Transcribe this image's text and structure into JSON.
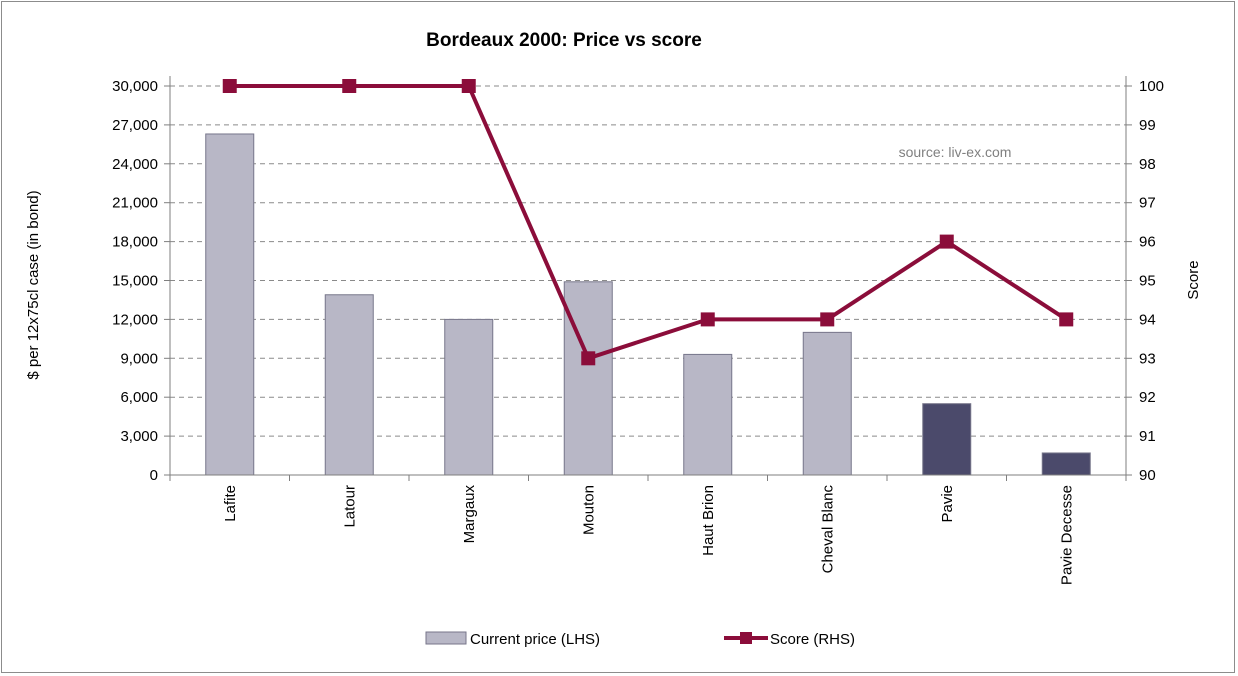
{
  "chart_data": {
    "type": "bar",
    "title": "Bordeaux 2000: Price vs score",
    "source_note": "source: liv-ex.com",
    "categories": [
      "Lafite",
      "Latour",
      "Margaux",
      "Mouton",
      "Haut Brion",
      "Cheval Blanc",
      "Pavie",
      "Pavie Decesse"
    ],
    "series": [
      {
        "name": "Current price (LHS)",
        "type": "bar",
        "axis": "left",
        "values": [
          26300,
          13900,
          12000,
          14900,
          9300,
          11000,
          5500,
          1700
        ],
        "colors": [
          "#b8b7c6",
          "#b8b7c6",
          "#b8b7c6",
          "#b8b7c6",
          "#b8b7c6",
          "#b8b7c6",
          "#4b4a6b",
          "#4b4a6b"
        ]
      },
      {
        "name": "Score (RHS)",
        "type": "line",
        "axis": "right",
        "values": [
          100,
          100,
          100,
          93,
          94,
          94,
          96,
          94
        ],
        "color": "#8b0d3a"
      }
    ],
    "y_left": {
      "label": "$ per 12x75cl case (in bond)",
      "range": [
        0,
        30000
      ],
      "ticks": [
        "0",
        "3,000",
        "6,000",
        "9,000",
        "12,000",
        "15,000",
        "18,000",
        "21,000",
        "24,000",
        "27,000",
        "30,000"
      ]
    },
    "y_right": {
      "label": "Score",
      "range": [
        90,
        100
      ],
      "ticks": [
        "90",
        "91",
        "92",
        "93",
        "94",
        "95",
        "96",
        "97",
        "98",
        "99",
        "100"
      ]
    },
    "grid": true,
    "legend_position": "bottom"
  }
}
